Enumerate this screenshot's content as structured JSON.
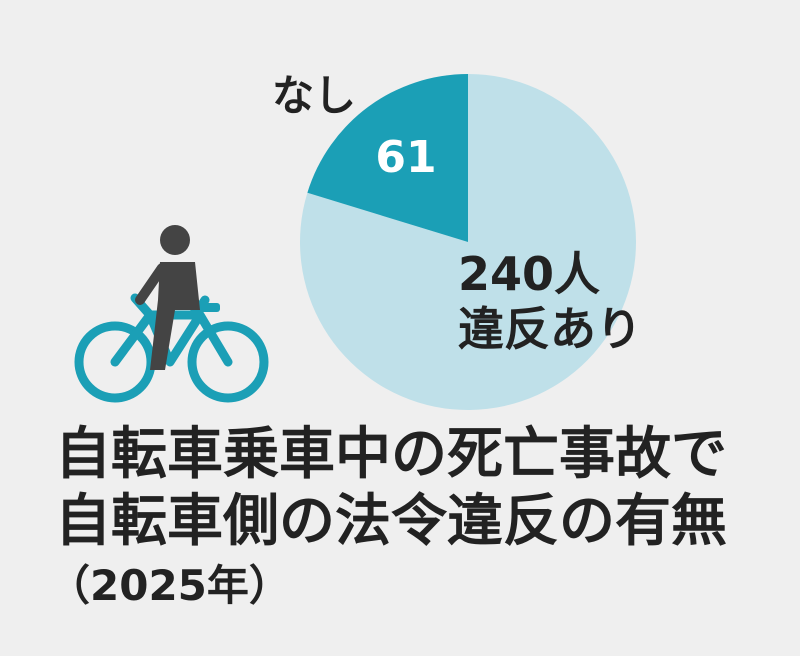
{
  "chart_data": {
    "type": "pie",
    "title": [
      "自転車乗車中の死亡事故で",
      "自転車側の法令違反の有無"
    ],
    "subtitle": "（2025年）",
    "categories": [
      "違反あり",
      "なし"
    ],
    "values": [
      240,
      61
    ],
    "value_labels": [
      "240人",
      "61"
    ],
    "colors": [
      "#bfe0e9",
      "#1b9fb6"
    ]
  }
}
